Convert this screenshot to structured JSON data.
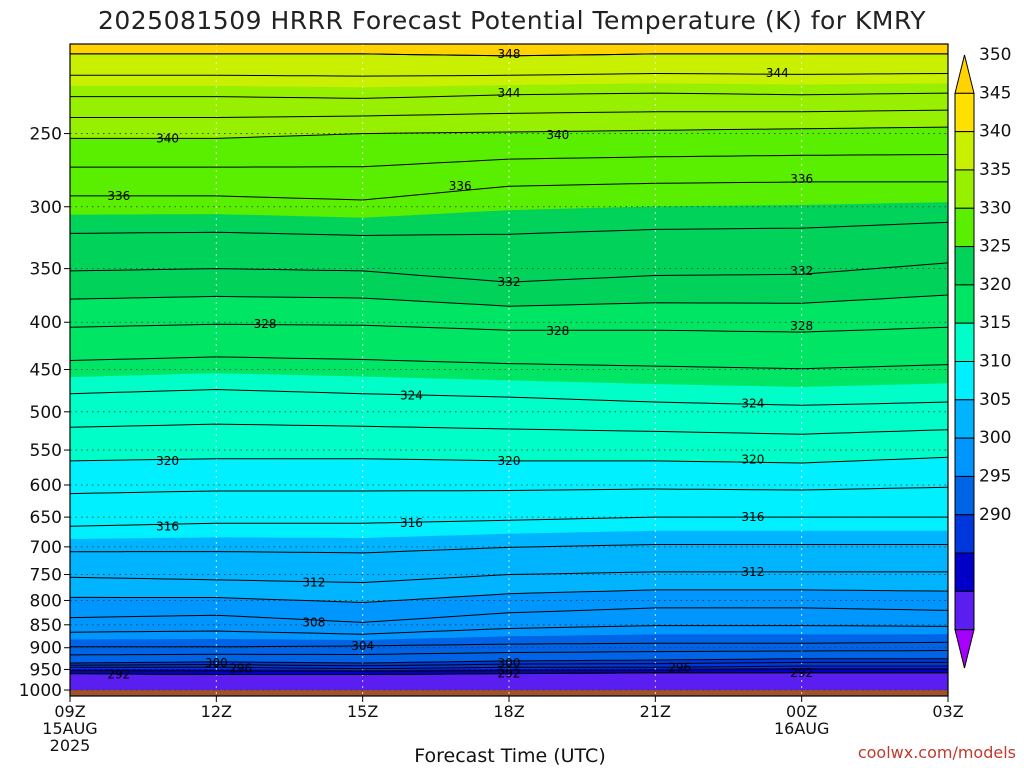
{
  "chart_data": {
    "type": "time-height contour",
    "title": "2025081509 HRRR Forecast Potential Temperature (K) for KMRY",
    "xlabel": "Forecast Time (UTC)",
    "credit": "coolwx.com/models",
    "x_ticks": [
      {
        "hour": 0,
        "lines": [
          "09Z",
          "15AUG",
          "2025"
        ]
      },
      {
        "hour": 3,
        "lines": [
          "12Z"
        ]
      },
      {
        "hour": 6,
        "lines": [
          "15Z"
        ]
      },
      {
        "hour": 9,
        "lines": [
          "18Z"
        ]
      },
      {
        "hour": 12,
        "lines": [
          "21Z"
        ]
      },
      {
        "hour": 15,
        "lines": [
          "00Z",
          "16AUG"
        ]
      },
      {
        "hour": 18,
        "lines": [
          "03Z"
        ]
      }
    ],
    "y_ticks": [
      250,
      300,
      350,
      400,
      450,
      500,
      550,
      600,
      650,
      700,
      750,
      800,
      850,
      900,
      950,
      1000
    ],
    "y_range_hPa": [
      200,
      1015
    ],
    "surface_pressure_hPa": 1000,
    "ground_color": "#a0522d",
    "colorbar": {
      "labels": [
        290,
        295,
        300,
        305,
        310,
        315,
        320,
        325,
        330,
        335,
        340,
        345,
        350
      ],
      "colors": [
        "#a600ff",
        "#5a1ef0",
        "#0000c8",
        "#0037dc",
        "#0064e6",
        "#0096ff",
        "#00b4ff",
        "#00f0ff",
        "#00ffc8",
        "#00e664",
        "#00d25a",
        "#5aee00",
        "#96f000",
        "#c8f000",
        "#ffe000",
        "#ffd200"
      ],
      "extend": "both"
    },
    "contour_interval_K": 2,
    "isentrope_pressure_profile": {
      "description": "pressure (hPa) of selected isentropes at forecast hours 0,3,6,9,12,15,18",
      "theta_348": [
        205,
        205,
        205,
        206,
        205,
        205,
        205
      ],
      "theta_344": [
        228,
        228,
        229,
        227,
        226,
        227,
        226
      ],
      "theta_340": [
        253,
        253,
        250,
        249,
        248,
        247,
        246
      ],
      "theta_336": [
        292,
        292,
        295,
        285,
        283,
        282,
        282
      ],
      "theta_332": [
        352,
        350,
        352,
        362,
        356,
        355,
        345
      ],
      "theta_328": [
        405,
        402,
        403,
        408,
        408,
        410,
        405
      ],
      "theta_324": [
        478,
        473,
        478,
        482,
        488,
        492,
        488
      ],
      "theta_320": [
        565,
        562,
        562,
        565,
        565,
        568,
        560
      ],
      "theta_316": [
        665,
        660,
        660,
        655,
        650,
        650,
        650
      ],
      "theta_312": [
        755,
        760,
        765,
        750,
        745,
        745,
        745
      ],
      "theta_308": [
        835,
        830,
        845,
        825,
        815,
        815,
        820
      ],
      "theta_304": [
        898,
        898,
        896,
        892,
        890,
        890,
        888
      ],
      "theta_300": [
        935,
        932,
        935,
        930,
        928,
        925,
        925
      ],
      "theta_296": [
        945,
        945,
        948,
        945,
        945,
        942,
        942
      ],
      "theta_292": [
        960,
        962,
        962,
        960,
        958,
        958,
        958
      ]
    },
    "contour_labels": [
      {
        "value": "348",
        "hour": 9.0,
        "p": 205
      },
      {
        "value": "344",
        "hour": 9.0,
        "p": 226
      },
      {
        "value": "344",
        "hour": 14.5,
        "p": 215
      },
      {
        "value": "340",
        "hour": 2.0,
        "p": 253
      },
      {
        "value": "340",
        "hour": 10.0,
        "p": 251
      },
      {
        "value": "336",
        "hour": 1.0,
        "p": 292
      },
      {
        "value": "336",
        "hour": 8.0,
        "p": 285
      },
      {
        "value": "336",
        "hour": 15.0,
        "p": 280
      },
      {
        "value": "332",
        "hour": 9.0,
        "p": 362
      },
      {
        "value": "332",
        "hour": 15.0,
        "p": 352
      },
      {
        "value": "328",
        "hour": 4.0,
        "p": 402
      },
      {
        "value": "328",
        "hour": 10.0,
        "p": 409
      },
      {
        "value": "328",
        "hour": 15.0,
        "p": 404
      },
      {
        "value": "324",
        "hour": 7.0,
        "p": 480
      },
      {
        "value": "324",
        "hour": 14.0,
        "p": 490
      },
      {
        "value": "320",
        "hour": 2.0,
        "p": 565
      },
      {
        "value": "320",
        "hour": 9.0,
        "p": 565
      },
      {
        "value": "320",
        "hour": 14.0,
        "p": 563
      },
      {
        "value": "316",
        "hour": 2.0,
        "p": 665
      },
      {
        "value": "316",
        "hour": 7.0,
        "p": 660
      },
      {
        "value": "316",
        "hour": 14.0,
        "p": 650
      },
      {
        "value": "312",
        "hour": 5.0,
        "p": 765
      },
      {
        "value": "312",
        "hour": 14.0,
        "p": 745
      },
      {
        "value": "308",
        "hour": 5.0,
        "p": 845
      },
      {
        "value": "304",
        "hour": 6.0,
        "p": 896
      },
      {
        "value": "300",
        "hour": 3.0,
        "p": 935
      },
      {
        "value": "300",
        "hour": 9.0,
        "p": 935
      },
      {
        "value": "296",
        "hour": 3.5,
        "p": 948
      },
      {
        "value": "296",
        "hour": 12.5,
        "p": 946
      },
      {
        "value": "292",
        "hour": 1.0,
        "p": 962
      },
      {
        "value": "292",
        "hour": 9.0,
        "p": 960
      },
      {
        "value": "292",
        "hour": 15.0,
        "p": 958
      }
    ],
    "grid": true
  }
}
